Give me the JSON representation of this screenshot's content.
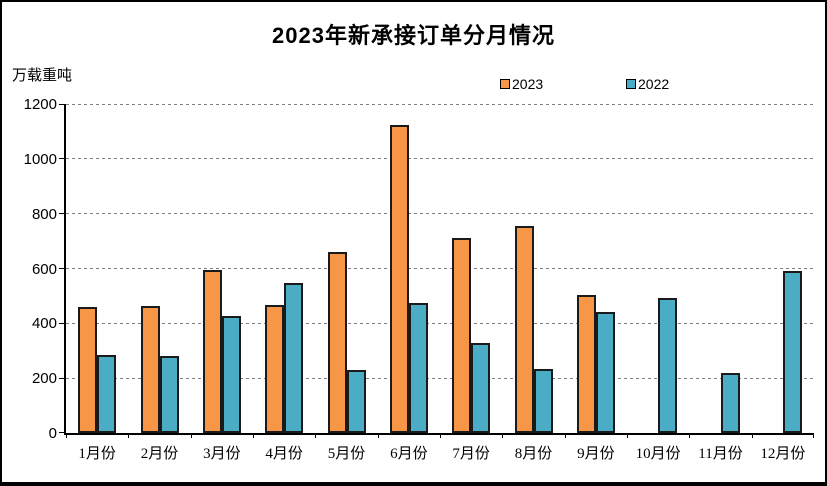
{
  "title": "2023年新承接订单分月情况",
  "y_axis_unit_label": "万载重吨",
  "colors": {
    "series_2023": "#F79646",
    "series_2022": "#4BACC6",
    "gridline": "#7f7f7f",
    "axis": "#000000",
    "background": "#ffffff"
  },
  "chart_data": {
    "type": "bar",
    "title": "2023年新承接订单分月情况",
    "ylabel": "万载重吨",
    "xlabel": "",
    "categories": [
      "1月份",
      "2月份",
      "3月份",
      "4月份",
      "5月份",
      "6月份",
      "7月份",
      "8月份",
      "9月份",
      "10月份",
      "11月份",
      "12月份"
    ],
    "series": [
      {
        "name": "2023",
        "color": "#F79646",
        "values": [
          460,
          464,
          593,
          466,
          660,
          1124,
          710,
          756,
          503,
          null,
          null,
          null
        ]
      },
      {
        "name": "2022",
        "color": "#4BACC6",
        "values": [
          283,
          282,
          428,
          546,
          229,
          476,
          328,
          234,
          441,
          493,
          219,
          591
        ]
      }
    ],
    "ylim": [
      0,
      1200
    ],
    "ytick_interval": 200,
    "grid": "horizontal-dashed",
    "legend_position": "top-center"
  }
}
